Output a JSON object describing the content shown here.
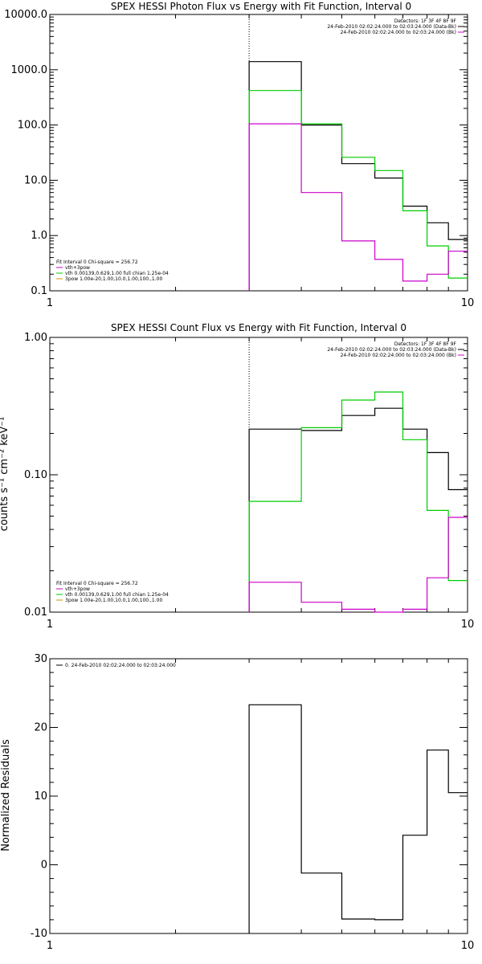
{
  "chart_data": [
    {
      "type": "line",
      "step": true,
      "title": "SPEX HESSI Photon Flux vs Energy with Fit Function, Interval 0",
      "xlabel": "",
      "ylabel": "",
      "xscale": "log",
      "yscale": "log",
      "xlim": [
        1,
        10
      ],
      "ylim": [
        0.1,
        10000
      ],
      "xticks": [
        "1",
        "10"
      ],
      "yticks": [
        "0.1",
        "1.0",
        "10.0",
        "100.0",
        "1000.0",
        "10000.0"
      ],
      "marker_x": 3,
      "legend_top": [
        "Detectors: 1F 3F 4F 8F 9F",
        "24-Feb-2010 02:02:24.000 to 02:03:24.000 (Data-Bk)",
        "24-Feb-2010 02:02:24.000 to 02:03:24.000 (Bk)"
      ],
      "legend_bottom": [
        "Fit Interval 0   Chi-square = 256.72",
        "vth+3pow",
        "vth 0.00139,0.629,1.00  full chian 1.25e-04",
        "3pow 1.00e-20,1.00,10.0,1.00,100.,1.00"
      ],
      "bin_edges": [
        3,
        4,
        5,
        6,
        7,
        8,
        9,
        10
      ],
      "series": [
        {
          "color": "#000000",
          "values": [
            1400,
            100,
            20,
            11,
            3.4,
            1.7,
            0.85
          ]
        },
        {
          "color": "#00cc00",
          "values": [
            420,
            105,
            26,
            15,
            2.8,
            0.65,
            0.17
          ]
        },
        {
          "color": "#cc00cc",
          "values": [
            105,
            6,
            0.8,
            0.37,
            0.15,
            0.2,
            0.52
          ]
        }
      ]
    },
    {
      "type": "line",
      "step": true,
      "title": "SPEX HESSI Count Flux vs Energy with Fit Function, Interval 0",
      "xlabel": "",
      "ylabel": "counts s⁻¹ cm⁻² keV⁻¹",
      "xscale": "log",
      "yscale": "log",
      "xlim": [
        1,
        10
      ],
      "ylim": [
        0.01,
        1
      ],
      "xticks": [
        "1",
        "10"
      ],
      "yticks": [
        "0.01",
        "0.10",
        "1.00"
      ],
      "marker_x": 3,
      "legend_top": [
        "Detectors: 1F 3F 4F 8F 9F",
        "24-Feb-2010 02:02:24.000 to 02:03:24.000 (Data-Bk)",
        "24-Feb-2010 02:02:24.000 to 02:03:24.000 (Bk)"
      ],
      "legend_bottom": [
        "Fit Interval 0   Chi-square = 256.72",
        "vth+3pow",
        "vth 0.00139,0.629,1.00  full chian 1.25e-04",
        "3pow 1.00e-20,1.00,10.0,1.00,100.,1.00"
      ],
      "bin_edges": [
        3,
        4,
        5,
        6,
        7,
        8,
        9,
        10
      ],
      "series": [
        {
          "color": "#000000",
          "values": [
            0.215,
            0.21,
            0.27,
            0.305,
            0.215,
            0.145,
            0.078
          ]
        },
        {
          "color": "#00cc00",
          "values": [
            0.064,
            0.22,
            0.35,
            0.4,
            0.18,
            0.055,
            0.017
          ]
        },
        {
          "color": "#cc00cc",
          "values": [
            0.0165,
            0.0118,
            0.0105,
            0.0098,
            0.0105,
            0.0178,
            0.049
          ]
        }
      ]
    },
    {
      "type": "line",
      "step": true,
      "title": "",
      "xlabel": "",
      "ylabel": "Normalized Residuals",
      "xscale": "log",
      "yscale": "linear",
      "xlim": [
        1,
        10
      ],
      "ylim": [
        -10,
        30
      ],
      "xticks": [
        "1",
        "10"
      ],
      "yticks": [
        "-10",
        "0",
        "10",
        "20",
        "30"
      ],
      "legend_top": [
        "0. 24-Feb-2010 02:02:24.000 to 02:03:24.000"
      ],
      "bin_edges": [
        3,
        4,
        5,
        6,
        7,
        8,
        9,
        10
      ],
      "series": [
        {
          "color": "#000000",
          "values": [
            23.3,
            -1.2,
            -7.9,
            -8.0,
            4.3,
            16.7,
            10.5
          ]
        }
      ]
    }
  ]
}
